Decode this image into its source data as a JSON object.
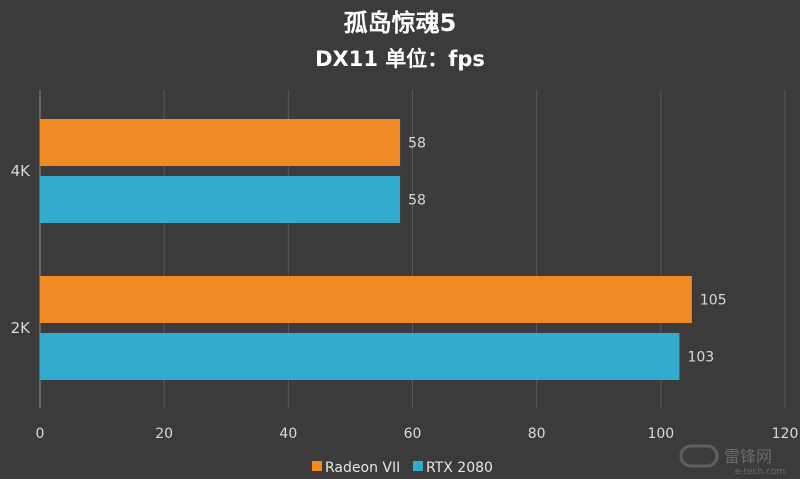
{
  "chart_data": {
    "type": "bar",
    "orientation": "horizontal",
    "title": "孤岛惊魂5",
    "subtitle": "DX11 单位：fps",
    "categories": [
      "4K",
      "2K"
    ],
    "series": [
      {
        "name": "Radeon VII",
        "values": [
          58,
          105
        ],
        "color": "#f08a24"
      },
      {
        "name": "RTX 2080",
        "values": [
          58,
          103
        ],
        "color": "#32abcf"
      }
    ],
    "xlim": [
      0,
      120
    ],
    "xticks": [
      "0",
      "20",
      "40",
      "60",
      "80",
      "100",
      "120"
    ],
    "grid": true,
    "legend_position": "bottom",
    "background_color": "#3b3b3b"
  },
  "watermark": {
    "text": "雷锋网",
    "subtext": "e-tech.com"
  }
}
